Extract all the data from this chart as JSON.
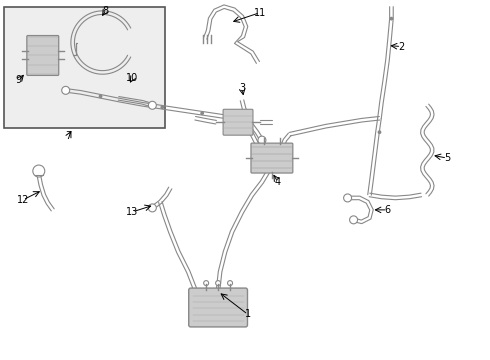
{
  "bg_color": "#ffffff",
  "line_color": "#888888",
  "text_color": "#000000",
  "box_bg": "#eeeeee",
  "figsize": [
    4.9,
    3.6
  ],
  "dpi": 100
}
